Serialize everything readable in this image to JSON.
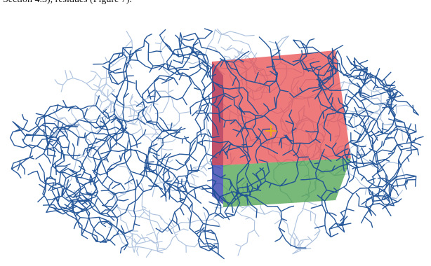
{
  "caption": {
    "fragment": "Section 4.3), residues (Figure 7)."
  },
  "colors": {
    "molecule": "#1b4f95",
    "molecule_faded": "#6f93c4",
    "box_front_top": "#e8474a",
    "box_front_bottom": "#3e9a3e",
    "box_side": "#2936a8",
    "center_marker": "#f0a81c"
  },
  "icons": {
    "center": "center-cross-icon"
  }
}
